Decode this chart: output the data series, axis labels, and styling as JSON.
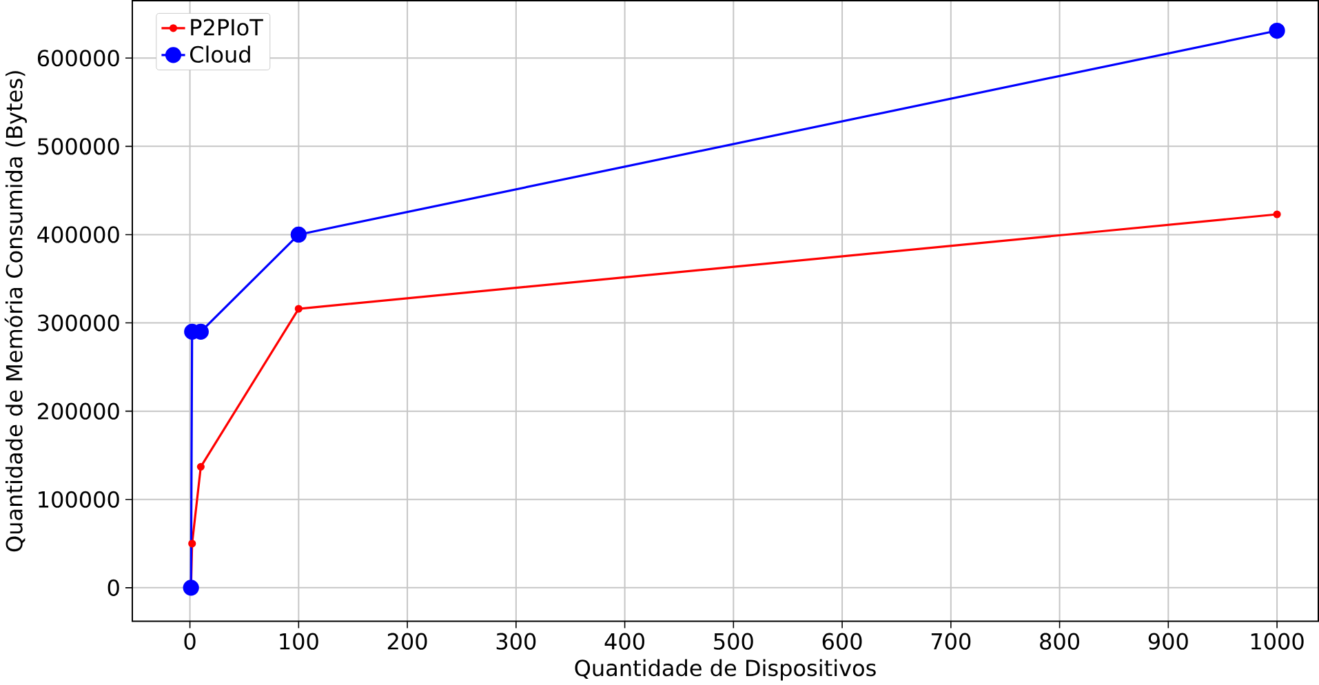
{
  "chart_data": {
    "type": "line",
    "xlabel": "Quantidade de Dispositivos",
    "ylabel": "Quantidade de Memória Consumida (Bytes)",
    "series": [
      {
        "name": "P2PIoT",
        "color": "#ff0000",
        "marker": "circle",
        "x": [
          1,
          2,
          10,
          100,
          1000
        ],
        "values": [
          0,
          50000,
          137000,
          316000,
          423000
        ]
      },
      {
        "name": "Cloud",
        "color": "#0000ff",
        "marker": "circle",
        "x": [
          1,
          2,
          10,
          100,
          1000
        ],
        "values": [
          0,
          290000,
          290000,
          400000,
          631000
        ]
      }
    ],
    "xlim": [
      -53,
      1038
    ],
    "ylim": [
      -38000,
      665000
    ],
    "xticks": [
      0,
      100,
      200,
      300,
      400,
      500,
      600,
      700,
      800,
      900,
      1000
    ],
    "yticks": [
      0,
      100000,
      200000,
      300000,
      400000,
      500000,
      600000
    ],
    "grid": true,
    "legend": "top left"
  }
}
